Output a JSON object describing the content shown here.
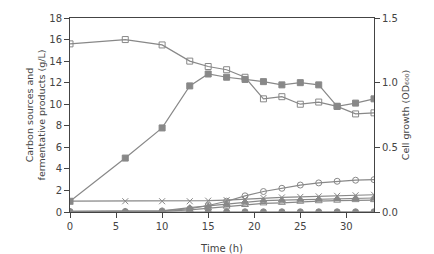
{
  "chart_data": {
    "type": "line",
    "xlabel": "Time (h)",
    "ylabel": "Carbon sources and\nfermentative products (g/L)",
    "y2label": "Cell growth (OD₆₀₀)",
    "xlim": [
      0,
      33
    ],
    "xticks": [
      0,
      5,
      10,
      15,
      20,
      25,
      30
    ],
    "ylim": [
      0,
      18
    ],
    "yticks": [
      0,
      2,
      4,
      6,
      8,
      10,
      12,
      14,
      16,
      18
    ],
    "y2lim": [
      0,
      1.5
    ],
    "y2ticks": [
      {
        "value": 0,
        "label": "0.0"
      },
      0.5,
      {
        "value": 1,
        "label": "1.0"
      },
      1.5
    ],
    "grid": false,
    "x": [
      0,
      6,
      10,
      13,
      15,
      17,
      19,
      21,
      23,
      25,
      27,
      29,
      31,
      33
    ],
    "series": [
      {
        "values": [
          15.6,
          16.0,
          15.5,
          14.0,
          13.5,
          13.2,
          12.5,
          10.5,
          10.7,
          10.0,
          10.2,
          9.8,
          9.1,
          9.2
        ],
        "color": "#888888",
        "marker": "square-open"
      },
      {
        "values": [
          0.083,
          0.417,
          0.65,
          0.975,
          1.067,
          1.042,
          1.025,
          1.008,
          0.983,
          1.0,
          0.983,
          0.817,
          0.842,
          0.875
        ],
        "color": "#888888",
        "marker": "square",
        "axis": "y2"
      },
      {
        "values": [
          0.05,
          0.05,
          0.1,
          0.3,
          0.6,
          1.0,
          1.5,
          1.9,
          2.2,
          2.5,
          2.7,
          2.85,
          2.95,
          3.0
        ],
        "color": "#888888",
        "marker": "circle-open"
      },
      {
        "values": [
          1.0,
          1.0,
          1.0,
          1.0,
          1.05,
          1.1,
          1.2,
          1.3,
          1.35,
          1.4,
          1.45,
          1.5,
          1.55,
          1.6
        ],
        "color": "#888888",
        "marker": "x-thin-open"
      },
      {
        "values": [
          0.05,
          0.05,
          0.1,
          0.4,
          0.55,
          0.75,
          0.9,
          1.05,
          1.1,
          1.15,
          1.2,
          1.25,
          1.3,
          1.3
        ],
        "color": "#888888",
        "marker": "triangle-up"
      },
      {
        "values": [
          0.0,
          0.05,
          0.05,
          0.2,
          0.35,
          0.5,
          0.65,
          0.8,
          0.85,
          0.95,
          1.0,
          1.05,
          1.1,
          1.1
        ],
        "color": "#888888",
        "marker": "triangle-up-open"
      },
      {
        "values": [
          0.0,
          0.0,
          0.0,
          0.02,
          0.02,
          0.02,
          0.02,
          0.02,
          0.02,
          0.02,
          0.02,
          0.02,
          0.02,
          0.02
        ],
        "color": "#888888",
        "marker": "circle"
      }
    ]
  }
}
